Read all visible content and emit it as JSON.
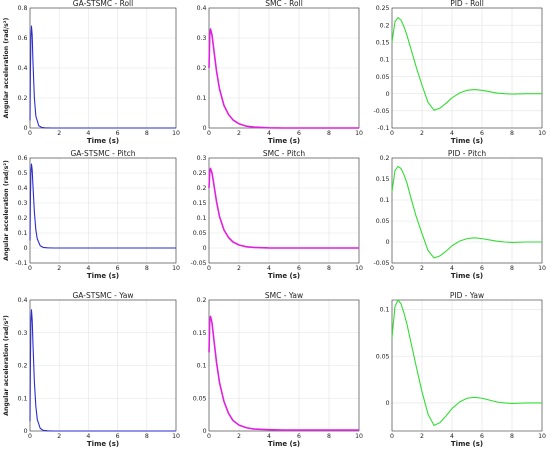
{
  "chart_data": [
    {
      "type": "line",
      "title": "GA-STSMC - Roll",
      "xlabel": "Time (s)",
      "ylabel": "Angular acceleration (rad/s²)",
      "xlim": [
        0,
        10
      ],
      "ylim": [
        0,
        0.8
      ],
      "xticks": [
        "0",
        "2",
        "4",
        "6",
        "8",
        "10"
      ],
      "yticks": [
        "0",
        "0.2",
        "0.4",
        "0.6",
        "0.8"
      ],
      "grid": true,
      "color": "#2b2bd0",
      "series": [
        {
          "x": [
            0,
            0.03,
            0.06,
            0.1,
            0.15,
            0.2,
            0.3,
            0.4,
            0.6,
            0.8,
            1.0,
            1.5,
            2,
            3,
            10
          ],
          "y": [
            0.05,
            0.4,
            0.6,
            0.68,
            0.62,
            0.45,
            0.2,
            0.08,
            0.015,
            0.004,
            0.001,
            0,
            0,
            0,
            0
          ]
        }
      ]
    },
    {
      "type": "line",
      "title": "SMC - Roll",
      "xlabel": "Time (s)",
      "ylabel": "",
      "xlim": [
        0,
        10
      ],
      "ylim": [
        0,
        0.4
      ],
      "xticks": [
        "0",
        "2",
        "4",
        "6",
        "8",
        "10"
      ],
      "yticks": [
        "0",
        "0.1",
        "0.2",
        "0.3",
        "0.4"
      ],
      "grid": true,
      "color": "#e020e0",
      "series": [
        {
          "x": [
            0,
            0.05,
            0.1,
            0.2,
            0.3,
            0.5,
            0.7,
            1.0,
            1.3,
            1.6,
            2.0,
            2.5,
            3,
            4,
            5,
            10
          ],
          "y": [
            0.2,
            0.31,
            0.33,
            0.31,
            0.27,
            0.19,
            0.13,
            0.075,
            0.045,
            0.027,
            0.014,
            0.006,
            0.003,
            0.0005,
            0,
            0
          ]
        }
      ]
    },
    {
      "type": "line",
      "title": "PID - Roll",
      "xlabel": "Time (s)",
      "ylabel": "",
      "xlim": [
        0,
        10
      ],
      "ylim": [
        -0.1,
        0.25
      ],
      "xticks": [
        "0",
        "2",
        "4",
        "6",
        "8",
        "10"
      ],
      "yticks": [
        "-0.1",
        "-0.05",
        "0",
        "0.05",
        "0.1",
        "0.15",
        "0.2",
        "0.25"
      ],
      "grid": true,
      "color": "#33dd33",
      "series": [
        {
          "x": [
            0,
            0.2,
            0.4,
            0.6,
            0.8,
            1.0,
            1.3,
            1.6,
            2.0,
            2.4,
            2.8,
            3.2,
            3.6,
            4.0,
            4.5,
            5.0,
            5.5,
            6.0,
            6.5,
            7.0,
            7.5,
            8.0,
            9.0,
            10
          ],
          "y": [
            0.15,
            0.21,
            0.222,
            0.215,
            0.195,
            0.17,
            0.125,
            0.08,
            0.025,
            -0.025,
            -0.048,
            -0.042,
            -0.028,
            -0.012,
            0.002,
            0.01,
            0.012,
            0.01,
            0.006,
            0.002,
            0,
            -0.001,
            0,
            0
          ]
        }
      ]
    },
    {
      "type": "line",
      "title": "GA-STSMC - Pitch",
      "xlabel": "Time (s)",
      "ylabel": "Angular acceleration (rad/s²)",
      "xlim": [
        0,
        10
      ],
      "ylim": [
        -0.1,
        0.6
      ],
      "xticks": [
        "0",
        "2",
        "4",
        "6",
        "8",
        "10"
      ],
      "yticks": [
        "-0.1",
        "0",
        "0.1",
        "0.2",
        "0.3",
        "0.4",
        "0.5",
        "0.6"
      ],
      "grid": true,
      "color": "#2b2bd0",
      "series": [
        {
          "x": [
            0,
            0.03,
            0.06,
            0.1,
            0.15,
            0.2,
            0.3,
            0.4,
            0.5,
            0.7,
            0.9,
            1.2,
            1.6,
            2,
            3,
            10
          ],
          "y": [
            0.05,
            0.35,
            0.5,
            0.56,
            0.52,
            0.42,
            0.24,
            0.12,
            0.06,
            0.015,
            0.004,
            0.001,
            0,
            0,
            0,
            0
          ]
        }
      ]
    },
    {
      "type": "line",
      "title": "SMC - Pitch",
      "xlabel": "Time (s)",
      "ylabel": "",
      "xlim": [
        0,
        10
      ],
      "ylim": [
        -0.05,
        0.3
      ],
      "xticks": [
        "0",
        "2",
        "4",
        "6",
        "8",
        "10"
      ],
      "yticks": [
        "-0.05",
        "0",
        "0.05",
        "0.1",
        "0.15",
        "0.2",
        "0.25",
        "0.3"
      ],
      "grid": true,
      "color": "#e020e0",
      "series": [
        {
          "x": [
            0,
            0.05,
            0.1,
            0.2,
            0.3,
            0.5,
            0.7,
            1.0,
            1.3,
            1.6,
            2.0,
            2.5,
            3,
            4,
            5,
            10
          ],
          "y": [
            0.2,
            0.255,
            0.265,
            0.25,
            0.22,
            0.155,
            0.105,
            0.06,
            0.035,
            0.02,
            0.01,
            0.004,
            0.002,
            0.0003,
            0,
            0
          ]
        }
      ]
    },
    {
      "type": "line",
      "title": "PID - Pitch",
      "xlabel": "Time (s)",
      "ylabel": "",
      "xlim": [
        0,
        10
      ],
      "ylim": [
        -0.05,
        0.2
      ],
      "xticks": [
        "0",
        "2",
        "4",
        "6",
        "8",
        "10"
      ],
      "yticks": [
        "-0.05",
        "0",
        "0.05",
        "0.1",
        "0.15",
        "0.2"
      ],
      "grid": true,
      "color": "#33dd33",
      "series": [
        {
          "x": [
            0,
            0.2,
            0.4,
            0.6,
            0.8,
            1.0,
            1.3,
            1.6,
            2.0,
            2.4,
            2.8,
            3.2,
            3.6,
            4.0,
            4.5,
            5.0,
            5.5,
            6.0,
            6.5,
            7.0,
            7.5,
            8.0,
            9.0,
            10
          ],
          "y": [
            0.12,
            0.17,
            0.18,
            0.175,
            0.16,
            0.14,
            0.1,
            0.062,
            0.02,
            -0.02,
            -0.038,
            -0.033,
            -0.022,
            -0.009,
            0.002,
            0.008,
            0.01,
            0.008,
            0.005,
            0.002,
            0,
            -0.001,
            0,
            0
          ]
        }
      ]
    },
    {
      "type": "line",
      "title": "GA-STSMC - Yaw",
      "xlabel": "Time (s)",
      "ylabel": "Angular acceleration (rad/s²)",
      "xlim": [
        0,
        10
      ],
      "ylim": [
        0,
        0.4
      ],
      "xticks": [
        "0",
        "2",
        "4",
        "6",
        "8",
        "10"
      ],
      "yticks": [
        "0",
        "0.1",
        "0.2",
        "0.3",
        "0.4"
      ],
      "grid": true,
      "color": "#2b2bd0",
      "series": [
        {
          "x": [
            0,
            0.03,
            0.06,
            0.1,
            0.15,
            0.2,
            0.3,
            0.4,
            0.5,
            0.7,
            0.9,
            1.2,
            1.6,
            2,
            3,
            10
          ],
          "y": [
            0.03,
            0.22,
            0.33,
            0.37,
            0.34,
            0.27,
            0.15,
            0.075,
            0.035,
            0.008,
            0.002,
            0.0005,
            0,
            0,
            0,
            0
          ]
        }
      ]
    },
    {
      "type": "line",
      "title": "SMC - Yaw",
      "xlabel": "Time (s)",
      "ylabel": "",
      "xlim": [
        0,
        10
      ],
      "ylim": [
        0,
        0.2
      ],
      "xticks": [
        "0",
        "2",
        "4",
        "6",
        "8",
        "10"
      ],
      "yticks": [
        "0",
        "0.05",
        "0.1",
        "0.15",
        "0.2"
      ],
      "grid": true,
      "color": "#e020e0",
      "series": [
        {
          "x": [
            0,
            0.05,
            0.1,
            0.2,
            0.3,
            0.5,
            0.7,
            1.0,
            1.3,
            1.6,
            2.0,
            2.5,
            3,
            4,
            5,
            10
          ],
          "y": [
            0.12,
            0.17,
            0.175,
            0.165,
            0.145,
            0.105,
            0.074,
            0.045,
            0.027,
            0.016,
            0.009,
            0.005,
            0.003,
            0.002,
            0.0015,
            0.0015
          ]
        }
      ]
    },
    {
      "type": "line",
      "title": "PID - Yaw",
      "xlabel": "Time (s)",
      "ylabel": "",
      "xlim": [
        0,
        10
      ],
      "ylim": [
        -0.03,
        0.11
      ],
      "xticks": [
        "0",
        "2",
        "4",
        "6",
        "8",
        "10"
      ],
      "yticks": [
        "0",
        "0.05",
        "0.1"
      ],
      "grid": true,
      "color": "#33dd33",
      "series": [
        {
          "x": [
            0,
            0.2,
            0.4,
            0.6,
            0.8,
            1.0,
            1.3,
            1.6,
            2.0,
            2.4,
            2.8,
            3.2,
            3.6,
            4.0,
            4.5,
            5.0,
            5.5,
            6.0,
            6.5,
            7.0,
            7.5,
            8.0,
            9.0,
            10
          ],
          "y": [
            0.07,
            0.103,
            0.11,
            0.106,
            0.096,
            0.084,
            0.062,
            0.04,
            0.012,
            -0.012,
            -0.024,
            -0.021,
            -0.014,
            -0.006,
            0.001,
            0.005,
            0.006,
            0.005,
            0.003,
            0.001,
            0,
            -0.0005,
            0,
            0
          ]
        }
      ]
    }
  ]
}
